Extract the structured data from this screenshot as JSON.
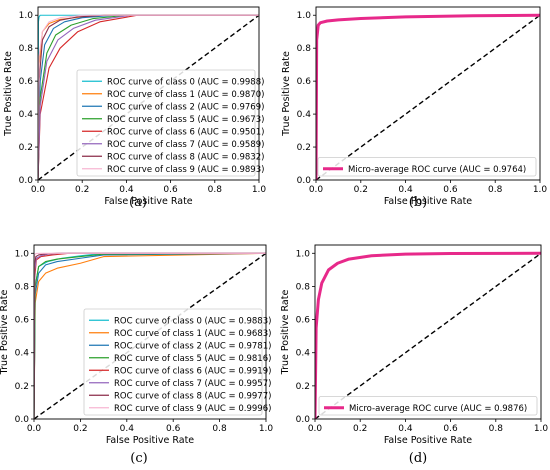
{
  "chart_data": [
    {
      "panel": "(a)",
      "type": "line",
      "xlabel": "False Positive Rate",
      "ylabel": "True Positive Rate",
      "xlim": [
        0,
        1
      ],
      "ylim": [
        0,
        1.05
      ],
      "xticks": [
        "0.0",
        "0.2",
        "0.4",
        "0.6",
        "0.8",
        "1.0"
      ],
      "yticks": [
        "0.0",
        "0.2",
        "0.4",
        "0.6",
        "0.8",
        "1.0"
      ],
      "legend_position": "lower right",
      "diagonal": true,
      "series": [
        {
          "name": "ROC curve of class 0 (AUC = 0.9988)",
          "color": "#17becf",
          "x": [
            0,
            0.002,
            0.005,
            0.01,
            0.02,
            0.05,
            1
          ],
          "y": [
            0,
            0.96,
            0.99,
            1.0,
            1.0,
            1.0,
            1.0
          ]
        },
        {
          "name": "ROC curve of class 1 (AUC = 0.9870)",
          "color": "#ff7f0e",
          "x": [
            0,
            0.005,
            0.02,
            0.05,
            0.1,
            0.2,
            0.3,
            1
          ],
          "y": [
            0,
            0.7,
            0.9,
            0.95,
            0.975,
            0.99,
            1.0,
            1.0
          ]
        },
        {
          "name": "ROC curve of class 2 (AUC = 0.9769)",
          "color": "#1f77b4",
          "x": [
            0,
            0.01,
            0.03,
            0.07,
            0.12,
            0.2,
            0.35,
            1
          ],
          "y": [
            0,
            0.6,
            0.82,
            0.92,
            0.96,
            0.985,
            1.0,
            1.0
          ]
        },
        {
          "name": "ROC curve of class 5 (AUC = 0.9673)",
          "color": "#2ca02c",
          "x": [
            0,
            0.01,
            0.04,
            0.08,
            0.15,
            0.25,
            0.4,
            1
          ],
          "y": [
            0,
            0.5,
            0.77,
            0.88,
            0.94,
            0.98,
            1.0,
            1.0
          ]
        },
        {
          "name": "ROC curve of class 6 (AUC = 0.9501)",
          "color": "#d62728",
          "x": [
            0,
            0.01,
            0.05,
            0.1,
            0.18,
            0.28,
            0.45,
            1
          ],
          "y": [
            0,
            0.4,
            0.68,
            0.8,
            0.9,
            0.96,
            1.0,
            1.0
          ]
        },
        {
          "name": "ROC curve of class 7 (AUC = 0.9589)",
          "color": "#9467bd",
          "x": [
            0,
            0.01,
            0.04,
            0.09,
            0.16,
            0.26,
            0.42,
            1
          ],
          "y": [
            0,
            0.45,
            0.72,
            0.85,
            0.92,
            0.97,
            1.0,
            1.0
          ]
        },
        {
          "name": "ROC curve of class 8 (AUC = 0.9832)",
          "color": "#8c2d4a",
          "x": [
            0,
            0.005,
            0.02,
            0.05,
            0.1,
            0.18,
            0.3,
            1
          ],
          "y": [
            0,
            0.6,
            0.85,
            0.93,
            0.97,
            0.99,
            1.0,
            1.0
          ]
        },
        {
          "name": "ROC curve of class 9 (AUC = 0.9893)",
          "color": "#f7b6d2",
          "x": [
            0,
            0.005,
            0.02,
            0.05,
            0.1,
            0.2,
            1
          ],
          "y": [
            0,
            0.75,
            0.9,
            0.96,
            0.985,
            1.0,
            1.0
          ]
        }
      ]
    },
    {
      "panel": "(b)",
      "type": "line",
      "xlabel": "False Positive Rate",
      "ylabel": "True Positive Rate",
      "xlim": [
        0,
        1
      ],
      "ylim": [
        0,
        1.05
      ],
      "xticks": [
        "0.0",
        "0.2",
        "0.4",
        "0.6",
        "0.8",
        "1.0"
      ],
      "yticks": [
        "0.0",
        "0.2",
        "0.4",
        "0.6",
        "0.8",
        "1.0"
      ],
      "legend_position": "lower right",
      "diagonal": true,
      "series": [
        {
          "name": "Micro-average ROC curve (AUC = 0.9764)",
          "color": "#e7298a",
          "width": 3,
          "x": [
            0,
            0.003,
            0.01,
            0.02,
            0.05,
            0.1,
            0.2,
            0.4,
            0.7,
            1
          ],
          "y": [
            0,
            0.85,
            0.94,
            0.955,
            0.965,
            0.972,
            0.98,
            0.99,
            0.997,
            1.0
          ]
        }
      ]
    },
    {
      "panel": "(c)",
      "type": "line",
      "xlabel": "False Positive Rate",
      "ylabel": "True Positive Rate",
      "xlim": [
        0,
        1
      ],
      "ylim": [
        0,
        1.05
      ],
      "xticks": [
        "0.0",
        "0.2",
        "0.4",
        "0.6",
        "0.8",
        "1.0"
      ],
      "yticks": [
        "0.0",
        "0.2",
        "0.4",
        "0.6",
        "0.8",
        "1.0"
      ],
      "legend_position": "lower right",
      "diagonal": true,
      "series": [
        {
          "name": "ROC curve of class 0 (AUC = 0.9883)",
          "color": "#17becf",
          "x": [
            0,
            0.005,
            0.02,
            0.06,
            0.12,
            0.2,
            0.3,
            1
          ],
          "y": [
            0,
            0.8,
            0.92,
            0.95,
            0.97,
            0.985,
            1.0,
            1.0
          ]
        },
        {
          "name": "ROC curve of class 1 (AUC = 0.9683)",
          "color": "#ff7f0e",
          "x": [
            0,
            0.005,
            0.02,
            0.05,
            0.1,
            0.2,
            0.3,
            1
          ],
          "y": [
            0,
            0.7,
            0.83,
            0.88,
            0.91,
            0.94,
            0.98,
            1.0
          ]
        },
        {
          "name": "ROC curve of class 2 (AUC = 0.9781)",
          "color": "#1f77b4",
          "x": [
            0,
            0.005,
            0.02,
            0.05,
            0.1,
            0.2,
            0.3,
            1
          ],
          "y": [
            0,
            0.75,
            0.88,
            0.93,
            0.95,
            0.97,
            0.99,
            1.0
          ]
        },
        {
          "name": "ROC curve of class 5 (AUC = 0.9816)",
          "color": "#2ca02c",
          "x": [
            0,
            0.005,
            0.02,
            0.05,
            0.1,
            0.2,
            0.3,
            1
          ],
          "y": [
            0,
            0.8,
            0.92,
            0.95,
            0.965,
            0.98,
            0.995,
            1.0
          ]
        },
        {
          "name": "ROC curve of class 6 (AUC = 0.9919)",
          "color": "#d62728",
          "x": [
            0,
            0.003,
            0.01,
            0.03,
            0.08,
            0.15,
            1
          ],
          "y": [
            0,
            0.85,
            0.96,
            0.98,
            0.99,
            1.0,
            1.0
          ]
        },
        {
          "name": "ROC curve of class 7 (AUC = 0.9957)",
          "color": "#9467bd",
          "x": [
            0,
            0.003,
            0.01,
            0.03,
            0.06,
            0.12,
            1
          ],
          "y": [
            0,
            0.9,
            0.97,
            0.985,
            0.995,
            1.0,
            1.0
          ]
        },
        {
          "name": "ROC curve of class 8 (AUC = 0.9977)",
          "color": "#8c2d4a",
          "x": [
            0,
            0.002,
            0.008,
            0.02,
            0.05,
            0.1,
            1
          ],
          "y": [
            0,
            0.93,
            0.98,
            0.99,
            0.997,
            1.0,
            1.0
          ]
        },
        {
          "name": "ROC curve of class 9 (AUC = 0.9996)",
          "color": "#f7b6d2",
          "x": [
            0,
            0.001,
            0.004,
            0.01,
            0.03,
            1
          ],
          "y": [
            0,
            0.97,
            0.995,
            0.999,
            1.0,
            1.0
          ]
        }
      ]
    },
    {
      "panel": "(d)",
      "type": "line",
      "xlabel": "False Positive Rate",
      "ylabel": "True Positive Rate",
      "xlim": [
        0,
        1
      ],
      "ylim": [
        0,
        1.05
      ],
      "xticks": [
        "0.0",
        "0.2",
        "0.4",
        "0.6",
        "0.8",
        "1.0"
      ],
      "yticks": [
        "0.0",
        "0.2",
        "0.4",
        "0.6",
        "0.8",
        "1.0"
      ],
      "legend_position": "lower right",
      "diagonal": true,
      "series": [
        {
          "name": "Micro-average ROC curve (AUC = 0.9876)",
          "color": "#e7298a",
          "width": 3,
          "x": [
            0,
            0.005,
            0.015,
            0.03,
            0.06,
            0.1,
            0.15,
            0.25,
            0.4,
            0.6,
            1
          ],
          "y": [
            0,
            0.55,
            0.72,
            0.82,
            0.9,
            0.94,
            0.965,
            0.985,
            0.995,
            0.999,
            1.0
          ]
        }
      ]
    }
  ]
}
